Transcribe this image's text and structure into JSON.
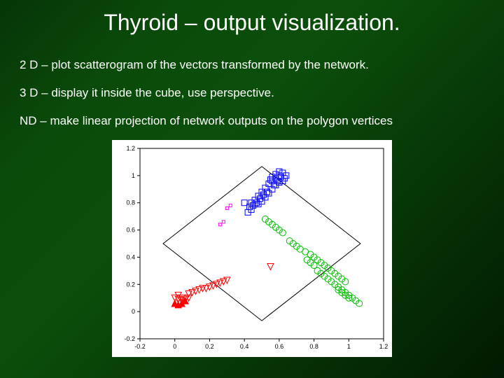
{
  "title": "Thyroid – output visualization.",
  "lines": [
    "2 D – plot scatterogram of the vectors transformed by the network.",
    "3 D – display it inside the cube, use perspective.",
    "ND –  make linear projection of network outputs on the polygon vertices"
  ],
  "plot": {
    "type": "scatter",
    "background_color": "#ffffff",
    "grid_color": "#c0c0c0",
    "frame_color": "#000000",
    "xlim": [
      -0.2,
      1.2
    ],
    "ylim": [
      -0.2,
      1.2
    ],
    "xticks": [
      -0.2,
      0,
      0.2,
      0.4,
      0.6,
      0.8,
      1,
      1.2
    ],
    "yticks": [
      -0.2,
      0,
      0.2,
      0.4,
      0.6,
      0.8,
      1,
      1.2
    ],
    "tick_fontsize": 9,
    "polygon_vertices": [
      [
        0.5,
        -0.067
      ],
      [
        1.067,
        0.5
      ],
      [
        0.5,
        1.067
      ],
      [
        -0.067,
        0.5
      ]
    ],
    "polygon_color": "#000000",
    "polygon_linewidth": 1,
    "series": [
      {
        "name": "blue-squares",
        "marker": "square",
        "color": "#0000ff",
        "size": 8,
        "filled": false,
        "linewidth": 1,
        "points": [
          [
            0.62,
            1.02
          ],
          [
            0.6,
            1.0
          ],
          [
            0.58,
            0.98
          ],
          [
            0.63,
            0.98
          ],
          [
            0.56,
            0.96
          ],
          [
            0.6,
            0.95
          ],
          [
            0.54,
            0.94
          ],
          [
            0.58,
            0.93
          ],
          [
            0.52,
            0.91
          ],
          [
            0.56,
            0.9
          ],
          [
            0.5,
            0.88
          ],
          [
            0.54,
            0.87
          ],
          [
            0.48,
            0.85
          ],
          [
            0.52,
            0.84
          ],
          [
            0.46,
            0.82
          ],
          [
            0.5,
            0.81
          ],
          [
            0.44,
            0.8
          ],
          [
            0.48,
            0.79
          ],
          [
            0.55,
            0.97
          ],
          [
            0.61,
            0.99
          ],
          [
            0.59,
            0.96
          ],
          [
            0.57,
            0.93
          ],
          [
            0.53,
            0.88
          ],
          [
            0.51,
            0.86
          ],
          [
            0.49,
            0.83
          ],
          [
            0.47,
            0.8
          ],
          [
            0.45,
            0.78
          ],
          [
            0.43,
            0.77
          ],
          [
            0.4,
            0.8
          ],
          [
            0.6,
            1.03
          ],
          [
            0.64,
            1.0
          ],
          [
            0.62,
            0.96
          ],
          [
            0.58,
            1.01
          ],
          [
            0.56,
            0.99
          ],
          [
            0.5,
            0.85
          ],
          [
            0.46,
            0.79
          ],
          [
            0.44,
            0.75
          ],
          [
            0.42,
            0.73
          ]
        ]
      },
      {
        "name": "magenta-small-squares",
        "marker": "square",
        "color": "#ff00ff",
        "size": 4,
        "filled": false,
        "linewidth": 1,
        "points": [
          [
            0.32,
            0.78
          ],
          [
            0.3,
            0.76
          ],
          [
            0.28,
            0.66
          ],
          [
            0.26,
            0.64
          ]
        ]
      },
      {
        "name": "green-circles",
        "marker": "circle",
        "color": "#00c000",
        "size": 9,
        "filled": false,
        "linewidth": 1,
        "points": [
          [
            0.75,
            0.44
          ],
          [
            0.78,
            0.42
          ],
          [
            0.8,
            0.4
          ],
          [
            0.82,
            0.38
          ],
          [
            0.84,
            0.36
          ],
          [
            0.86,
            0.34
          ],
          [
            0.88,
            0.32
          ],
          [
            0.9,
            0.3
          ],
          [
            0.92,
            0.28
          ],
          [
            0.94,
            0.26
          ],
          [
            0.96,
            0.24
          ],
          [
            0.98,
            0.22
          ],
          [
            0.82,
            0.3
          ],
          [
            0.84,
            0.28
          ],
          [
            0.86,
            0.26
          ],
          [
            0.88,
            0.24
          ],
          [
            0.9,
            0.22
          ],
          [
            0.92,
            0.2
          ],
          [
            0.94,
            0.18
          ],
          [
            0.96,
            0.16
          ],
          [
            0.98,
            0.14
          ],
          [
            1.0,
            0.12
          ],
          [
            1.02,
            0.1
          ],
          [
            1.04,
            0.08
          ],
          [
            1.06,
            0.06
          ],
          [
            0.76,
            0.38
          ],
          [
            0.78,
            0.36
          ],
          [
            0.8,
            0.34
          ],
          [
            0.72,
            0.46
          ],
          [
            0.7,
            0.48
          ],
          [
            0.68,
            0.5
          ],
          [
            0.66,
            0.52
          ],
          [
            0.52,
            0.68
          ],
          [
            0.54,
            0.66
          ],
          [
            0.56,
            0.64
          ],
          [
            0.58,
            0.62
          ],
          [
            0.6,
            0.6
          ],
          [
            0.62,
            0.58
          ],
          [
            1.0,
            0.1
          ],
          [
            0.98,
            0.12
          ],
          [
            0.96,
            0.14
          ],
          [
            0.94,
            0.16
          ]
        ]
      },
      {
        "name": "red-down-triangles",
        "marker": "triangle-down",
        "color": "#ff0000",
        "size": 9,
        "filled": false,
        "linewidth": 1,
        "points": [
          [
            0.0,
            0.1
          ],
          [
            0.02,
            0.09
          ],
          [
            0.04,
            0.1
          ],
          [
            0.03,
            0.06
          ],
          [
            0.05,
            0.07
          ],
          [
            0.08,
            0.13
          ],
          [
            0.1,
            0.14
          ],
          [
            0.12,
            0.15
          ],
          [
            0.14,
            0.16
          ],
          [
            0.16,
            0.17
          ],
          [
            0.08,
            0.1
          ],
          [
            0.2,
            0.18
          ],
          [
            0.22,
            0.19
          ],
          [
            0.24,
            0.2
          ],
          [
            0.26,
            0.21
          ],
          [
            0.28,
            0.22
          ],
          [
            0.3,
            0.23
          ],
          [
            0.18,
            0.17
          ],
          [
            0.02,
            0.12
          ],
          [
            0.04,
            0.08
          ],
          [
            0.06,
            0.09
          ],
          [
            0.55,
            0.33
          ]
        ]
      },
      {
        "name": "red-up-triangles",
        "marker": "triangle-up",
        "color": "#ff0000",
        "size": 9,
        "filled": true,
        "linewidth": 1,
        "points": [
          [
            0.0,
            0.06
          ],
          [
            0.02,
            0.05
          ],
          [
            0.04,
            0.06
          ],
          [
            0.06,
            0.08
          ]
        ]
      }
    ]
  }
}
